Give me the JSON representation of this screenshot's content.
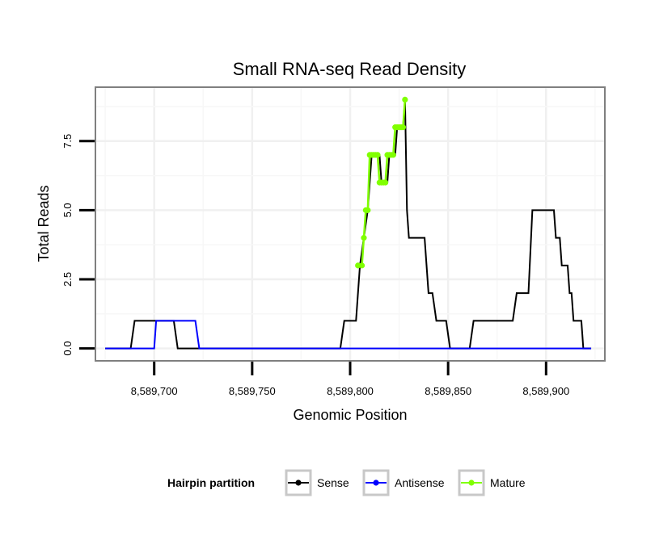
{
  "chart_data": {
    "type": "line",
    "title": "Small RNA-seq Read Density",
    "xlabel": "Genomic Position",
    "ylabel": "Total Reads",
    "xlim": [
      8589670,
      8589930
    ],
    "ylim": [
      -0.45,
      9.45
    ],
    "x_ticks": [
      8589700,
      8589750,
      8589800,
      8589850,
      8589900
    ],
    "x_tick_labels": [
      "8,589,700",
      "8,589,750",
      "8,589,800",
      "8,589,850",
      "8,589,900"
    ],
    "y_ticks": [
      0,
      2.5,
      5,
      7.5
    ],
    "y_tick_labels": [
      "0.0",
      "2.5",
      "5.0",
      "7.5"
    ],
    "grid": true,
    "legend": {
      "title": "Hairpin partition",
      "position": "bottom",
      "entries": [
        "Sense",
        "Antisense",
        "Mature"
      ]
    },
    "series": [
      {
        "name": "Sense",
        "color": "#000000",
        "points": [
          [
            8589675,
            0
          ],
          [
            8589688,
            0
          ],
          [
            8589690,
            1
          ],
          [
            8589710,
            1
          ],
          [
            8589712,
            0
          ],
          [
            8589795,
            0
          ],
          [
            8589797,
            1
          ],
          [
            8589803,
            1
          ],
          [
            8589805,
            3
          ],
          [
            8589807,
            4
          ],
          [
            8589809,
            5
          ],
          [
            8589811,
            7
          ],
          [
            8589815,
            7
          ],
          [
            8589816,
            6
          ],
          [
            8589819,
            6
          ],
          [
            8589820,
            7
          ],
          [
            8589823,
            7
          ],
          [
            8589824,
            8
          ],
          [
            8589827,
            8
          ],
          [
            8589828,
            9
          ],
          [
            8589829,
            5
          ],
          [
            8589830,
            4
          ],
          [
            8589838,
            4
          ],
          [
            8589840,
            2
          ],
          [
            8589842,
            2
          ],
          [
            8589844,
            1
          ],
          [
            8589849,
            1
          ],
          [
            8589851,
            0
          ],
          [
            8589861,
            0
          ],
          [
            8589863,
            1
          ],
          [
            8589883,
            1
          ],
          [
            8589885,
            2
          ],
          [
            8589891,
            2
          ],
          [
            8589893,
            5
          ],
          [
            8589904,
            5
          ],
          [
            8589905,
            4
          ],
          [
            8589907,
            4
          ],
          [
            8589908,
            3
          ],
          [
            8589911,
            3
          ],
          [
            8589912,
            2
          ],
          [
            8589913,
            2
          ],
          [
            8589914,
            1
          ],
          [
            8589918,
            1
          ],
          [
            8589919,
            0
          ],
          [
            8589923,
            0
          ]
        ]
      },
      {
        "name": "Antisense",
        "color": "#0000ff",
        "points": [
          [
            8589675,
            0
          ],
          [
            8589700,
            0
          ],
          [
            8589701,
            1
          ],
          [
            8589721,
            1
          ],
          [
            8589723,
            0
          ],
          [
            8589923,
            0
          ]
        ]
      },
      {
        "name": "Mature",
        "color": "#80ff00",
        "marker": "circle",
        "points": [
          [
            8589804,
            3
          ],
          [
            8589806,
            3
          ],
          [
            8589807,
            4
          ],
          [
            8589808,
            5
          ],
          [
            8589809,
            5
          ],
          [
            8589810,
            7
          ],
          [
            8589811,
            7
          ],
          [
            8589812,
            7
          ],
          [
            8589813,
            7
          ],
          [
            8589814,
            7
          ],
          [
            8589815,
            6
          ],
          [
            8589816,
            6
          ],
          [
            8589817,
            6
          ],
          [
            8589818,
            6
          ],
          [
            8589819,
            7
          ],
          [
            8589820,
            7
          ],
          [
            8589821,
            7
          ],
          [
            8589822,
            7
          ],
          [
            8589823,
            8
          ],
          [
            8589824,
            8
          ],
          [
            8589825,
            8
          ],
          [
            8589826,
            8
          ],
          [
            8589827,
            8
          ],
          [
            8589828,
            9
          ]
        ]
      }
    ]
  }
}
